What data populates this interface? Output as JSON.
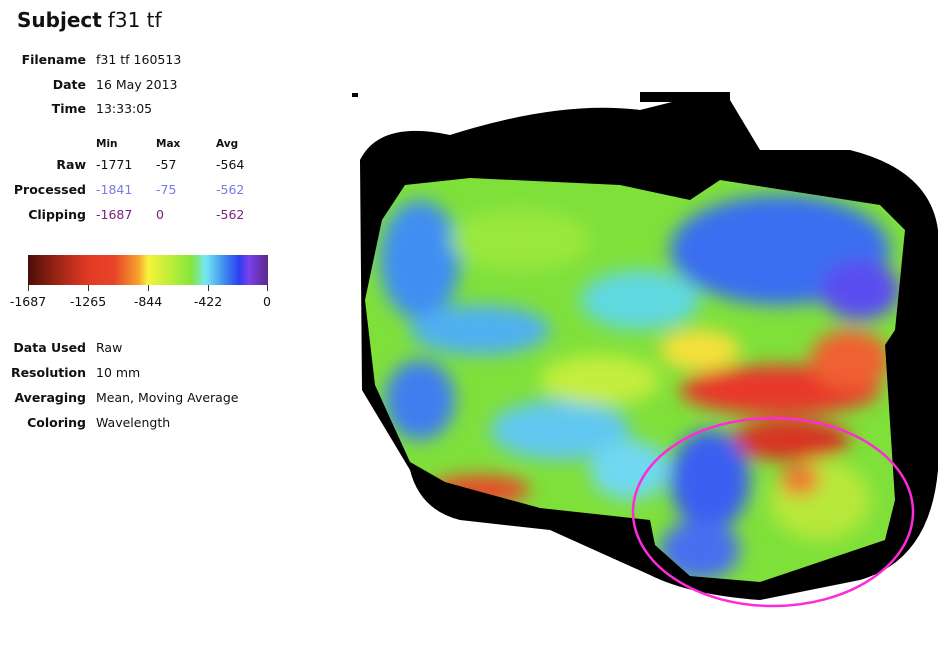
{
  "subject": {
    "label": "Subject",
    "value": "f31 tf"
  },
  "info": [
    {
      "label": "Filename",
      "value": "f31 tf 160513"
    },
    {
      "label": "Date",
      "value": "16 May 2013"
    },
    {
      "label": "Time",
      "value": "13:33:05"
    }
  ],
  "stats": {
    "headers": [
      "Min",
      "Max",
      "Avg"
    ],
    "rows": [
      {
        "label": "Raw",
        "values": [
          "-1771",
          "-57",
          "-564"
        ],
        "color": "#111111"
      },
      {
        "label": "Processed",
        "values": [
          "-1841",
          "-75",
          "-562"
        ],
        "color": "#7a7ae6"
      },
      {
        "label": "Clipping",
        "values": [
          "-1687",
          "0",
          "-562"
        ],
        "color": "#7a1e7e"
      }
    ]
  },
  "colorbar": {
    "ticks": [
      "-1687",
      "-1265",
      "-844",
      "-422",
      "0"
    ],
    "scheme": "Wavelength"
  },
  "settings": [
    {
      "label": "Data Used",
      "value": "Raw"
    },
    {
      "label": "Resolution",
      "value": "10 mm"
    },
    {
      "label": "Averaging",
      "value": "Mean, Moving Average"
    },
    {
      "label": "Coloring",
      "value": "Wavelength"
    }
  ],
  "annotation": {
    "shape": "ellipse",
    "color": "#ff2ad8"
  }
}
